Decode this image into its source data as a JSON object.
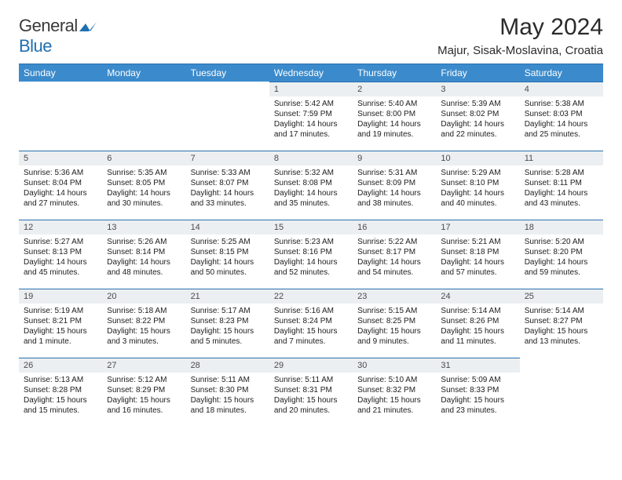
{
  "logo": {
    "general": "General",
    "blue": "Blue"
  },
  "title": "May 2024",
  "subtitle": "Majur, Sisak-Moslavina, Croatia",
  "colors": {
    "header_bg": "#3b8bcc",
    "header_text": "#ffffff",
    "daynum_bg": "#eceff1",
    "rule": "#2a6fb0",
    "logo_blue": "#1f6fb2"
  },
  "weekdays": [
    "Sunday",
    "Monday",
    "Tuesday",
    "Wednesday",
    "Thursday",
    "Friday",
    "Saturday"
  ],
  "weeks": [
    [
      null,
      null,
      null,
      {
        "n": "1",
        "sr": "Sunrise: 5:42 AM",
        "ss": "Sunset: 7:59 PM",
        "d1": "Daylight: 14 hours",
        "d2": "and 17 minutes."
      },
      {
        "n": "2",
        "sr": "Sunrise: 5:40 AM",
        "ss": "Sunset: 8:00 PM",
        "d1": "Daylight: 14 hours",
        "d2": "and 19 minutes."
      },
      {
        "n": "3",
        "sr": "Sunrise: 5:39 AM",
        "ss": "Sunset: 8:02 PM",
        "d1": "Daylight: 14 hours",
        "d2": "and 22 minutes."
      },
      {
        "n": "4",
        "sr": "Sunrise: 5:38 AM",
        "ss": "Sunset: 8:03 PM",
        "d1": "Daylight: 14 hours",
        "d2": "and 25 minutes."
      }
    ],
    [
      {
        "n": "5",
        "sr": "Sunrise: 5:36 AM",
        "ss": "Sunset: 8:04 PM",
        "d1": "Daylight: 14 hours",
        "d2": "and 27 minutes."
      },
      {
        "n": "6",
        "sr": "Sunrise: 5:35 AM",
        "ss": "Sunset: 8:05 PM",
        "d1": "Daylight: 14 hours",
        "d2": "and 30 minutes."
      },
      {
        "n": "7",
        "sr": "Sunrise: 5:33 AM",
        "ss": "Sunset: 8:07 PM",
        "d1": "Daylight: 14 hours",
        "d2": "and 33 minutes."
      },
      {
        "n": "8",
        "sr": "Sunrise: 5:32 AM",
        "ss": "Sunset: 8:08 PM",
        "d1": "Daylight: 14 hours",
        "d2": "and 35 minutes."
      },
      {
        "n": "9",
        "sr": "Sunrise: 5:31 AM",
        "ss": "Sunset: 8:09 PM",
        "d1": "Daylight: 14 hours",
        "d2": "and 38 minutes."
      },
      {
        "n": "10",
        "sr": "Sunrise: 5:29 AM",
        "ss": "Sunset: 8:10 PM",
        "d1": "Daylight: 14 hours",
        "d2": "and 40 minutes."
      },
      {
        "n": "11",
        "sr": "Sunrise: 5:28 AM",
        "ss": "Sunset: 8:11 PM",
        "d1": "Daylight: 14 hours",
        "d2": "and 43 minutes."
      }
    ],
    [
      {
        "n": "12",
        "sr": "Sunrise: 5:27 AM",
        "ss": "Sunset: 8:13 PM",
        "d1": "Daylight: 14 hours",
        "d2": "and 45 minutes."
      },
      {
        "n": "13",
        "sr": "Sunrise: 5:26 AM",
        "ss": "Sunset: 8:14 PM",
        "d1": "Daylight: 14 hours",
        "d2": "and 48 minutes."
      },
      {
        "n": "14",
        "sr": "Sunrise: 5:25 AM",
        "ss": "Sunset: 8:15 PM",
        "d1": "Daylight: 14 hours",
        "d2": "and 50 minutes."
      },
      {
        "n": "15",
        "sr": "Sunrise: 5:23 AM",
        "ss": "Sunset: 8:16 PM",
        "d1": "Daylight: 14 hours",
        "d2": "and 52 minutes."
      },
      {
        "n": "16",
        "sr": "Sunrise: 5:22 AM",
        "ss": "Sunset: 8:17 PM",
        "d1": "Daylight: 14 hours",
        "d2": "and 54 minutes."
      },
      {
        "n": "17",
        "sr": "Sunrise: 5:21 AM",
        "ss": "Sunset: 8:18 PM",
        "d1": "Daylight: 14 hours",
        "d2": "and 57 minutes."
      },
      {
        "n": "18",
        "sr": "Sunrise: 5:20 AM",
        "ss": "Sunset: 8:20 PM",
        "d1": "Daylight: 14 hours",
        "d2": "and 59 minutes."
      }
    ],
    [
      {
        "n": "19",
        "sr": "Sunrise: 5:19 AM",
        "ss": "Sunset: 8:21 PM",
        "d1": "Daylight: 15 hours",
        "d2": "and 1 minute."
      },
      {
        "n": "20",
        "sr": "Sunrise: 5:18 AM",
        "ss": "Sunset: 8:22 PM",
        "d1": "Daylight: 15 hours",
        "d2": "and 3 minutes."
      },
      {
        "n": "21",
        "sr": "Sunrise: 5:17 AM",
        "ss": "Sunset: 8:23 PM",
        "d1": "Daylight: 15 hours",
        "d2": "and 5 minutes."
      },
      {
        "n": "22",
        "sr": "Sunrise: 5:16 AM",
        "ss": "Sunset: 8:24 PM",
        "d1": "Daylight: 15 hours",
        "d2": "and 7 minutes."
      },
      {
        "n": "23",
        "sr": "Sunrise: 5:15 AM",
        "ss": "Sunset: 8:25 PM",
        "d1": "Daylight: 15 hours",
        "d2": "and 9 minutes."
      },
      {
        "n": "24",
        "sr": "Sunrise: 5:14 AM",
        "ss": "Sunset: 8:26 PM",
        "d1": "Daylight: 15 hours",
        "d2": "and 11 minutes."
      },
      {
        "n": "25",
        "sr": "Sunrise: 5:14 AM",
        "ss": "Sunset: 8:27 PM",
        "d1": "Daylight: 15 hours",
        "d2": "and 13 minutes."
      }
    ],
    [
      {
        "n": "26",
        "sr": "Sunrise: 5:13 AM",
        "ss": "Sunset: 8:28 PM",
        "d1": "Daylight: 15 hours",
        "d2": "and 15 minutes."
      },
      {
        "n": "27",
        "sr": "Sunrise: 5:12 AM",
        "ss": "Sunset: 8:29 PM",
        "d1": "Daylight: 15 hours",
        "d2": "and 16 minutes."
      },
      {
        "n": "28",
        "sr": "Sunrise: 5:11 AM",
        "ss": "Sunset: 8:30 PM",
        "d1": "Daylight: 15 hours",
        "d2": "and 18 minutes."
      },
      {
        "n": "29",
        "sr": "Sunrise: 5:11 AM",
        "ss": "Sunset: 8:31 PM",
        "d1": "Daylight: 15 hours",
        "d2": "and 20 minutes."
      },
      {
        "n": "30",
        "sr": "Sunrise: 5:10 AM",
        "ss": "Sunset: 8:32 PM",
        "d1": "Daylight: 15 hours",
        "d2": "and 21 minutes."
      },
      {
        "n": "31",
        "sr": "Sunrise: 5:09 AM",
        "ss": "Sunset: 8:33 PM",
        "d1": "Daylight: 15 hours",
        "d2": "and 23 minutes."
      },
      null
    ]
  ]
}
